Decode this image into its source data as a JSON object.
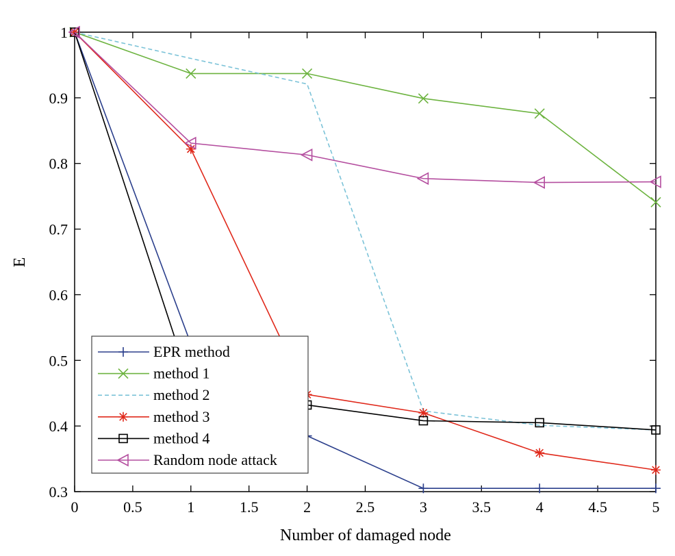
{
  "chart_data": {
    "type": "line",
    "title": "",
    "xlabel": "Number of damaged node",
    "ylabel": "E",
    "xlim": [
      0,
      5
    ],
    "ylim": [
      0.3,
      1
    ],
    "xticks": [
      0,
      0.5,
      1,
      1.5,
      2,
      2.5,
      3,
      3.5,
      4,
      4.5,
      5
    ],
    "xtick_labels": [
      "0",
      "0.5",
      "1",
      "1.5",
      "2",
      "2.5",
      "3",
      "3.5",
      "4",
      "4.5",
      "5"
    ],
    "yticks": [
      0.3,
      0.4,
      0.5,
      0.6,
      0.7,
      0.8,
      0.9,
      1
    ],
    "ytick_labels": [
      "0.3",
      "0.4",
      "0.5",
      "0.6",
      "0.7",
      "0.8",
      "0.9",
      "1"
    ],
    "x": [
      0,
      1,
      2,
      3,
      4,
      5
    ],
    "grid": false,
    "legend_position": "bottom-left",
    "series": [
      {
        "name": "EPR method",
        "color": "#2b3f8c",
        "marker": "plus",
        "dashed": false,
        "values": [
          1.0,
          0.525,
          0.385,
          0.305,
          0.305,
          0.305
        ]
      },
      {
        "name": "method 1",
        "color": "#6cb33f",
        "marker": "x",
        "dashed": false,
        "values": [
          1.0,
          0.937,
          0.937,
          0.899,
          0.876,
          0.741
        ]
      },
      {
        "name": "method 2",
        "color": "#7cc3d8",
        "marker": "none",
        "dashed": true,
        "values": [
          1.0,
          0.96,
          0.921,
          0.423,
          0.401,
          0.394
        ]
      },
      {
        "name": "method 3",
        "color": "#e0291b",
        "marker": "star",
        "dashed": false,
        "values": [
          1.0,
          0.822,
          0.448,
          0.42,
          0.359,
          0.333
        ]
      },
      {
        "name": "method 4",
        "color": "#000000",
        "marker": "square",
        "dashed": false,
        "values": [
          1.0,
          0.46,
          0.432,
          0.408,
          0.405,
          0.394
        ]
      },
      {
        "name": "Random node attack",
        "color": "#b44e9f",
        "marker": "triangle-left",
        "dashed": false,
        "values": [
          1.0,
          0.831,
          0.813,
          0.777,
          0.771,
          0.772
        ]
      }
    ]
  }
}
